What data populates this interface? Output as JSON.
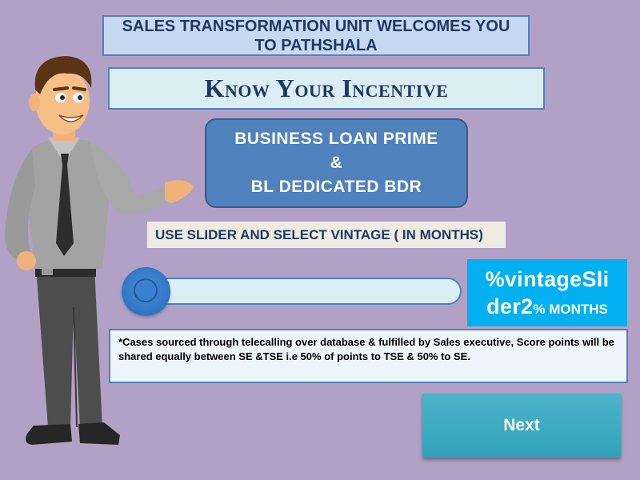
{
  "banner": {
    "text": "SALES TRANSFORMATION UNIT WELCOMES YOU TO PATHSHALA"
  },
  "heading": {
    "text": "Know Your Incentive"
  },
  "product": {
    "line1": "BUSINESS LOAN PRIME",
    "line2": "&",
    "line3": "BL DEDICATED BDR"
  },
  "instruction": {
    "text": "USE SLIDER AND SELECT VINTAGE ( IN MONTHS)"
  },
  "slider": {
    "value_text_a": "%vintageSli",
    "value_text_b": "der2",
    "value_text_c": "% MONTHS"
  },
  "note": {
    "text": "*Cases sourced through telecalling over database & fulfilled by Sales executive, Score points will be shared equally between SE &TSE i.e 50% of points to TSE & 50% to SE."
  },
  "next_button": {
    "label": "Next"
  },
  "colors": {
    "background": "#b2a1c7",
    "accent": "#4f81bd",
    "value_box": "#00b0f0",
    "next": "#31a3ba"
  }
}
